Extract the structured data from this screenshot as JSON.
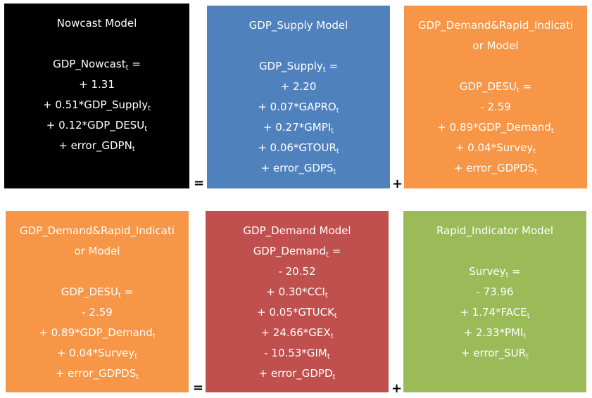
{
  "colors": {
    "black": "#000000",
    "blue": "#4f81bd",
    "orange": "#f79646",
    "red": "#c0504d",
    "green": "#9bbb59"
  },
  "boxes": [
    {
      "title": "Nowcast Model",
      "lines": [
        {
          "main": "GDP_Nowcast",
          "sub": "t",
          "after": " ="
        },
        {
          "main": "+ 1.31"
        },
        {
          "main": "+ 0.51*GDP_Supply",
          "sub": "t"
        },
        {
          "main": "+ 0.12*GDP_DESU",
          "sub": "t"
        },
        {
          "main": "+ error_GDPN",
          "sub": "t"
        }
      ]
    },
    {
      "title": "GDP_Supply Model",
      "lines": [
        {
          "main": "GDP_Supply",
          "sub": "t",
          "after": " ="
        },
        {
          "main": "+ 2.20"
        },
        {
          "main": "+ 0.07*GAPRO",
          "sub": "t"
        },
        {
          "main": "+ 0.27*GMPI",
          "sub": "t"
        },
        {
          "main": "+ 0.06*GTOUR",
          "sub": "t"
        },
        {
          "main": "+ error_GDPS",
          "sub": "t"
        }
      ]
    },
    {
      "title_lines": [
        "GDP_Demand&Rapid_Indicati",
        "or Model"
      ],
      "lines": [
        {
          "main": "GDP_DESU",
          "sub": "t",
          "after": " ="
        },
        {
          "main": "- 2.59"
        },
        {
          "main": "+ 0.89*GDP_Demand",
          "sub": "t"
        },
        {
          "main": "+ 0.04*Survey",
          "sub": "t"
        },
        {
          "main": "+ error_GDPDS",
          "sub": "t"
        }
      ]
    },
    {
      "title_lines": [
        "GDP_Demand&Rapid_Indicati",
        "or Model"
      ],
      "lines": [
        {
          "main": "GDP_DESU",
          "sub": "t",
          "after": " ="
        },
        {
          "main": "- 2.59"
        },
        {
          "main": "+ 0.89*GDP_Demand",
          "sub": "t"
        },
        {
          "main": "+ 0.04*Survey",
          "sub": "t"
        },
        {
          "main": "+ error_GDPDS",
          "sub": "t"
        }
      ]
    },
    {
      "title": "GDP_Demand Model",
      "lines": [
        {
          "main": "GDP_Demand",
          "sub": "t",
          "after": " ="
        },
        {
          "main": "- 20.52"
        },
        {
          "main": "+ 0.30*CCI",
          "sub": "t"
        },
        {
          "main": "+ 0.05*GTUCK",
          "sub": "t"
        },
        {
          "main": "+ 24.66*GEX",
          "sub": "t"
        },
        {
          "main": "- 10.53*GIM",
          "sub": "t"
        },
        {
          "main": "+ error_GDPD",
          "sub": "t"
        }
      ]
    },
    {
      "title": "Rapid_Indicator Model",
      "lines": [
        {
          "main": "Survey",
          "sub": "t",
          "after": " ="
        },
        {
          "main": "- 73.96"
        },
        {
          "main": "+ 1.74*FACE",
          "sub": "t"
        },
        {
          "main": "+ 2.33*PMI",
          "sub": "t"
        },
        {
          "main": "+ error_SUR",
          "sub": "t"
        }
      ]
    }
  ],
  "operators": {
    "equals": "=",
    "plus": "+"
  }
}
